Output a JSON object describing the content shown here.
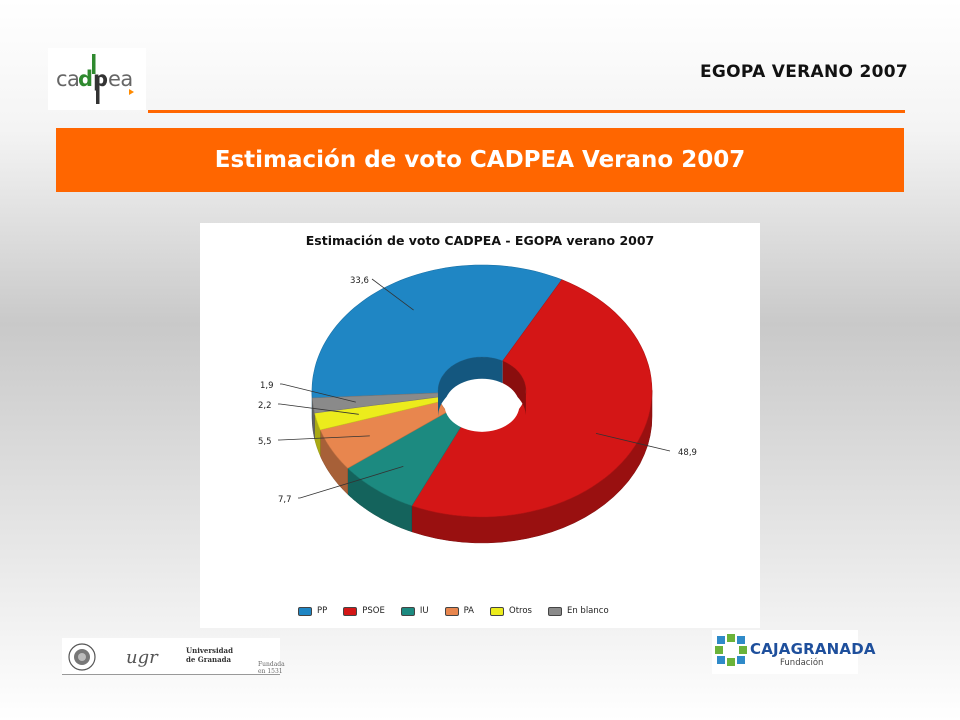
{
  "header": {
    "logo_text": "cadpea",
    "right_title": "EGOPA VERANO 2007"
  },
  "banner": {
    "title": "Estimación de voto CADPEA Verano 2007"
  },
  "chart_data": {
    "type": "pie",
    "title": "Estimación de voto CADPEA - EGOPA verano 2007",
    "style": "3d-donut",
    "legend_position": "bottom",
    "categories": [
      "PP",
      "PSOE",
      "IU",
      "PA",
      "Otros",
      "En blanco"
    ],
    "values": [
      33.6,
      48.9,
      7.7,
      5.5,
      2.2,
      1.9
    ],
    "data_labels": [
      "33,6",
      "48,9",
      "7,7",
      "5,5",
      "2,2",
      "1,9"
    ],
    "colors": [
      "#1f86c4",
      "#d41616",
      "#1c8a80",
      "#e8864e",
      "#ecec1c",
      "#8a8a8a"
    ]
  },
  "footer": {
    "left_logo": {
      "mark": "ugr",
      "name_line1": "Universidad",
      "name_line2": "de Granada",
      "tagline": "Fundada en 1531"
    },
    "right_logo": {
      "name": "CAJAGRANADA",
      "subtitle": "Fundación"
    }
  }
}
